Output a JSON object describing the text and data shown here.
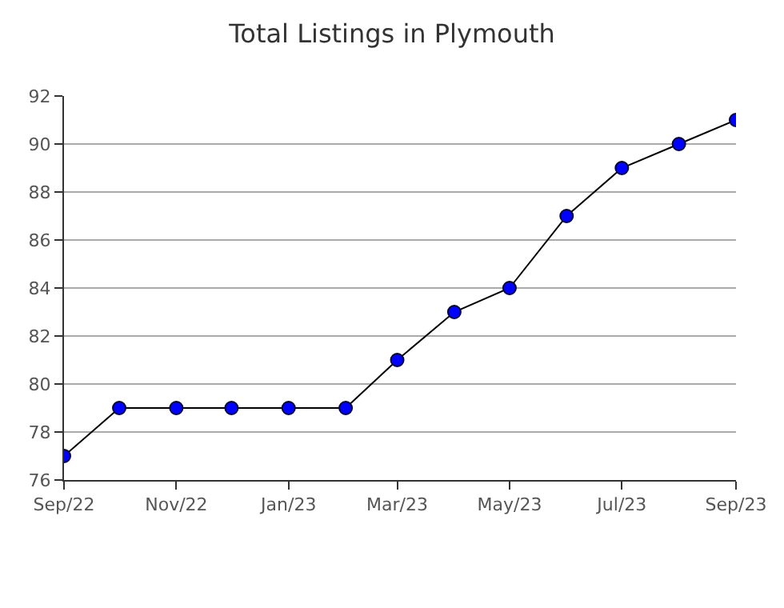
{
  "chart_data": {
    "type": "line",
    "title": "Total Listings in Plymouth",
    "x": [
      "2022-09",
      "2022-10",
      "2022-11",
      "2022-12",
      "2023-01",
      "2023-02",
      "2023-03",
      "2023-04",
      "2023-05",
      "2023-06",
      "2023-07",
      "2023-08",
      "2023-09"
    ],
    "series": [
      {
        "color": "#0000ff",
        "values": [
          77,
          79,
          79,
          79,
          79,
          79,
          81,
          83,
          84,
          87,
          89,
          90,
          91
        ]
      }
    ],
    "xlim": [
      "2022-09",
      "2023-09"
    ],
    "xticks": [
      {
        "value": "2022-09",
        "label": "Sep/22"
      },
      {
        "value": "2022-11",
        "label": "Nov/22"
      },
      {
        "value": "2023-01",
        "label": "Jan/23"
      },
      {
        "value": "2023-03",
        "label": "Mar/23"
      },
      {
        "value": "2023-05",
        "label": "May/23"
      },
      {
        "value": "2023-07",
        "label": "Jul/23"
      },
      {
        "value": "2023-09",
        "label": "Sep/23"
      }
    ],
    "ylim": [
      76,
      92
    ],
    "yticks": [
      76,
      78,
      80,
      82,
      84,
      86,
      88,
      90,
      92
    ],
    "grid": "y",
    "marker": "circle",
    "line_style": "solid"
  }
}
